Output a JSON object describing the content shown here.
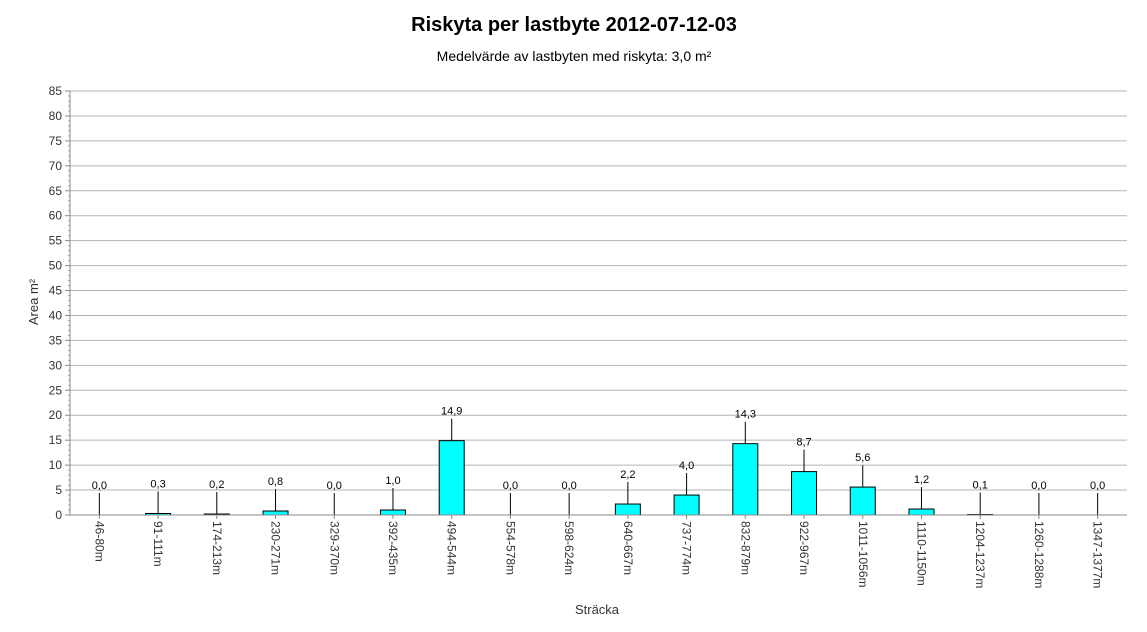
{
  "chart_data": {
    "type": "bar",
    "title": "Riskyta per lastbyte 2012-07-12-03",
    "subtitle": "Medelvärde av lastbyten med riskyta: 3,0 m²",
    "xlabel": "Sträcka",
    "ylabel": "Area m²",
    "ylim": [
      0,
      85
    ],
    "yticks": [
      0,
      5,
      10,
      15,
      20,
      25,
      30,
      35,
      40,
      45,
      50,
      55,
      60,
      65,
      70,
      75,
      80,
      85
    ],
    "grid": true,
    "bar_color": "#00ffff",
    "categories": [
      "46-80m",
      "91-111m",
      "174-213m",
      "230-271m",
      "329-370m",
      "392-435m",
      "494-544m",
      "554-578m",
      "598-624m",
      "640-667m",
      "737-774m",
      "832-879m",
      "922-967m",
      "1011-1056m",
      "1110-1150m",
      "1204-1237m",
      "1260-1288m",
      "1347-1377m"
    ],
    "values": [
      0.0,
      0.3,
      0.2,
      0.8,
      0.0,
      1.0,
      14.9,
      0.0,
      0.0,
      2.2,
      4.0,
      14.3,
      8.7,
      5.6,
      1.2,
      0.1,
      0.0,
      0.0
    ],
    "data_labels": [
      "0,0",
      "0,3",
      "0,2",
      "0,8",
      "0,0",
      "1,0",
      "14,9",
      "0,0",
      "0,0",
      "2,2",
      "4,0",
      "14,3",
      "8,7",
      "5,6",
      "1,2",
      "0,1",
      "0,0",
      "0,0"
    ]
  }
}
